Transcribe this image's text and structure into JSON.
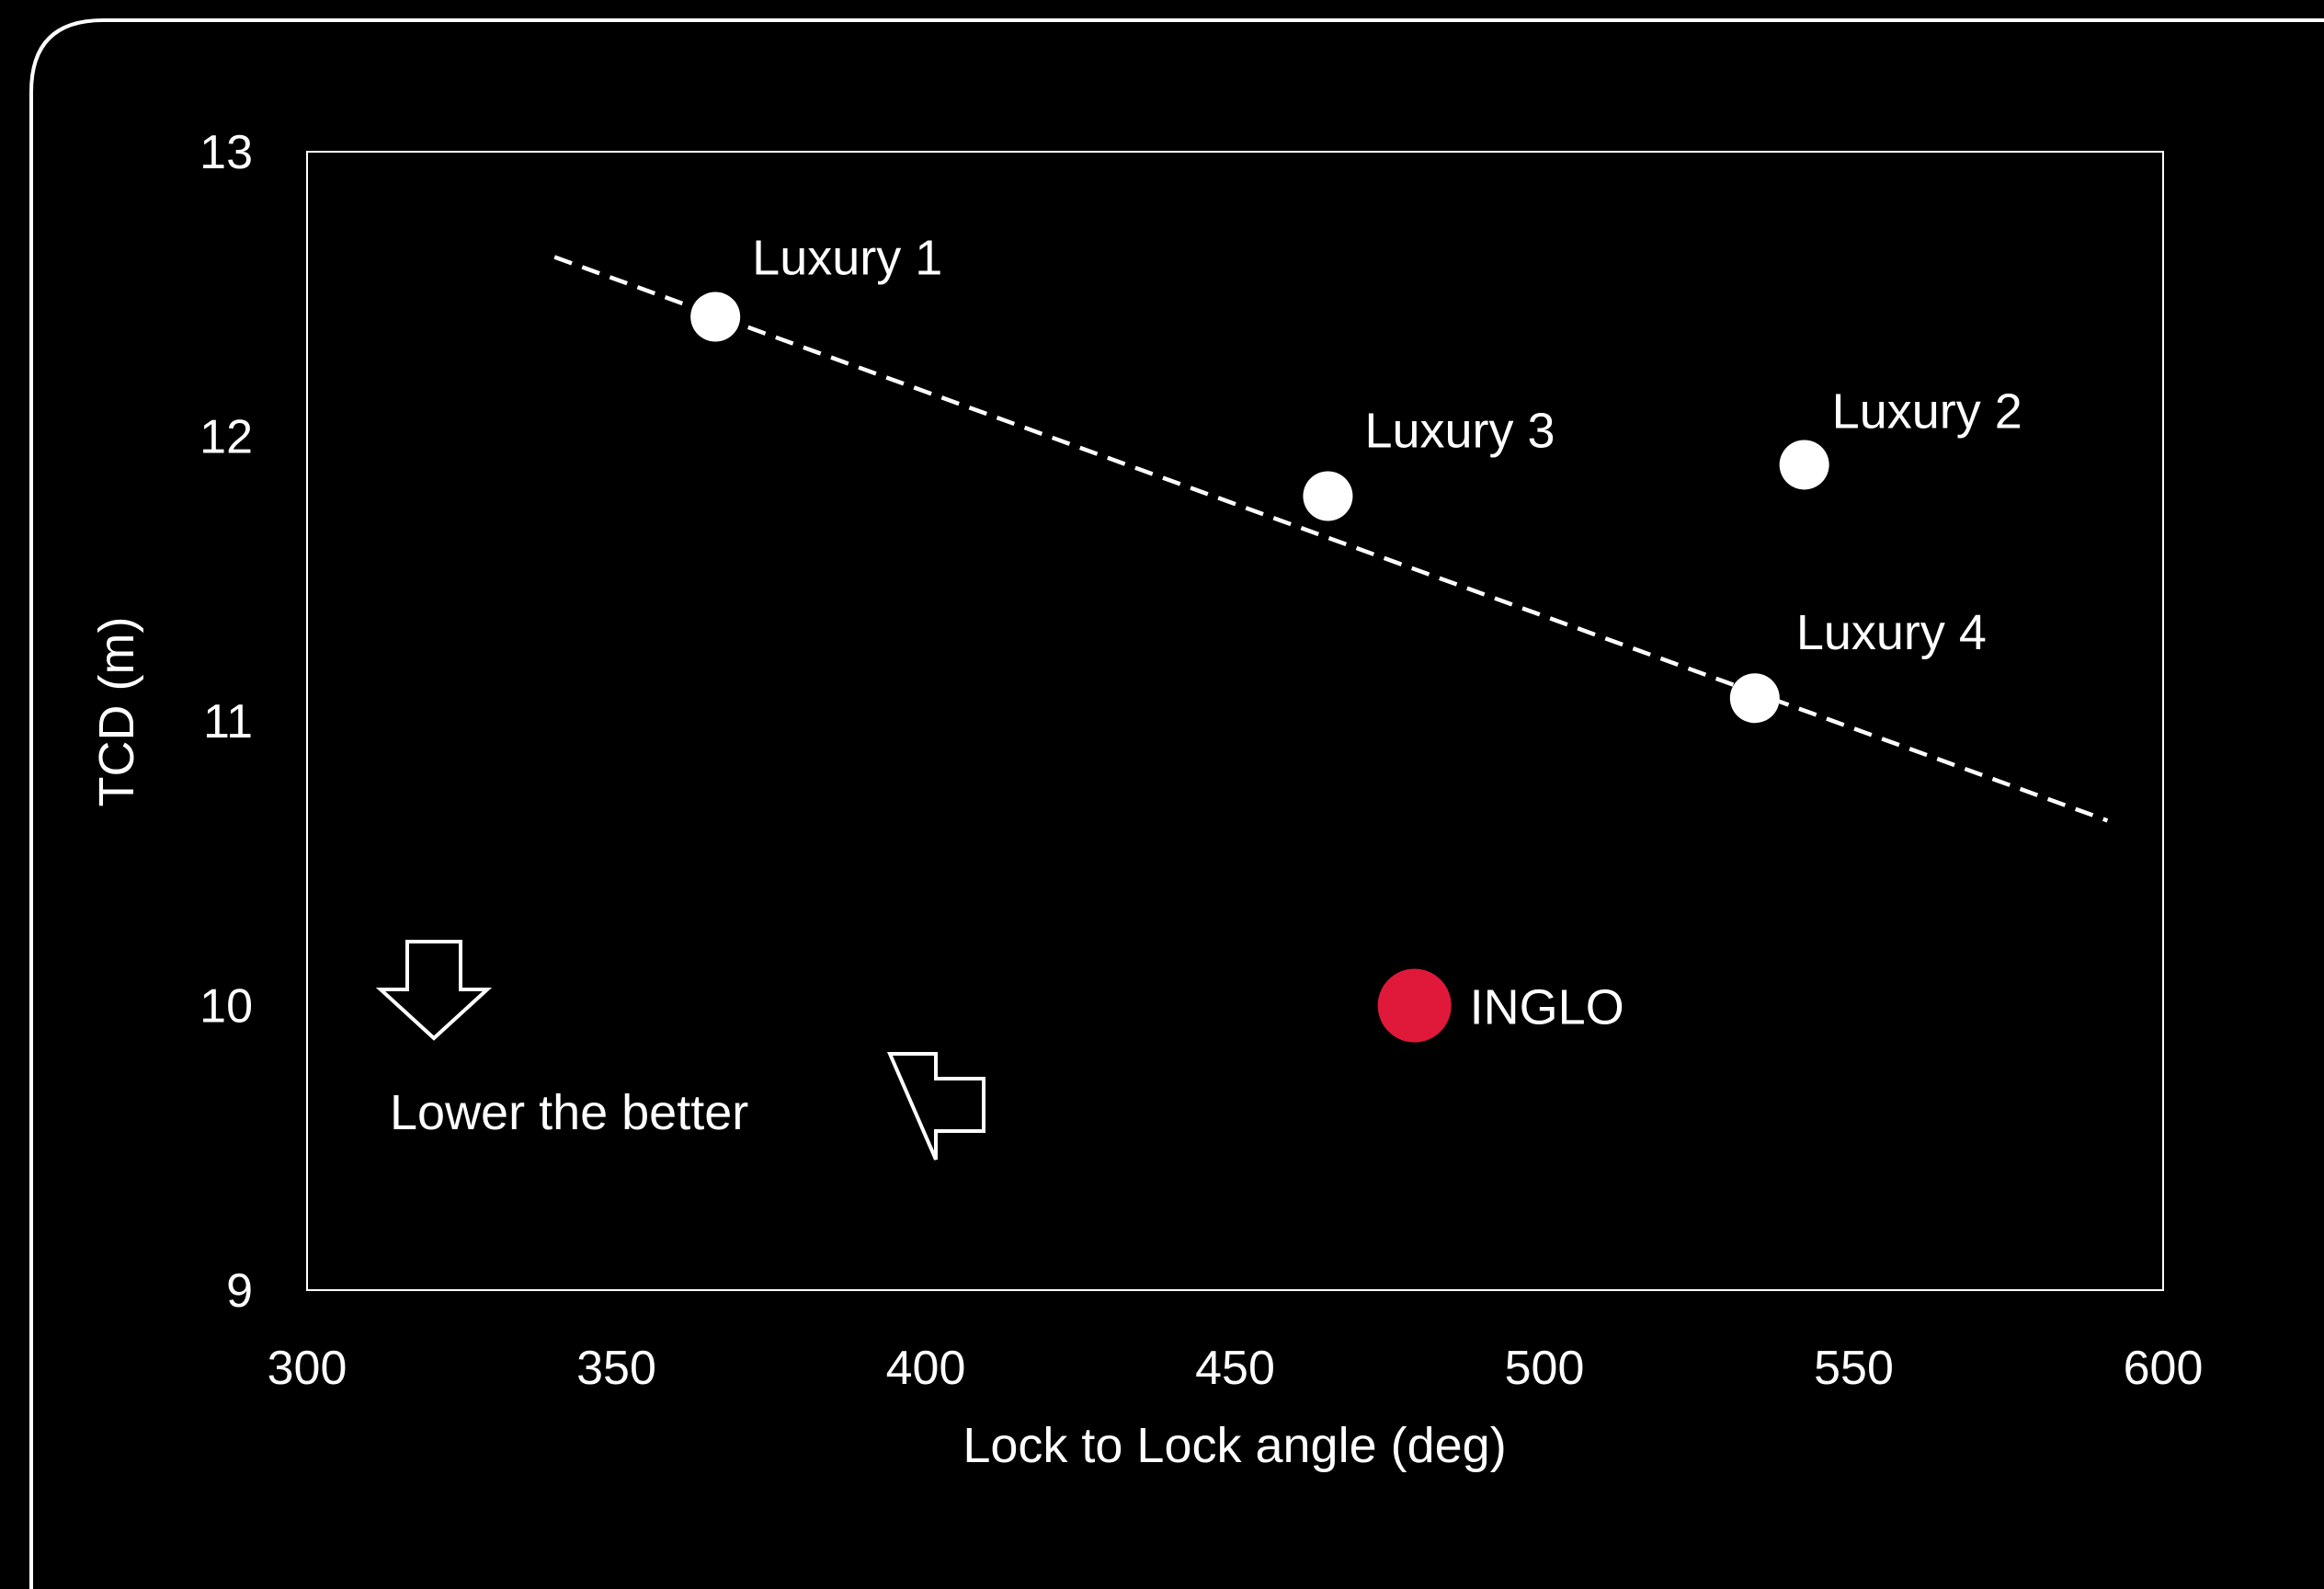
{
  "colors": {
    "background": "#000000",
    "foreground": "#ffffff",
    "highlight": "#e0193a"
  },
  "chart_data": {
    "type": "scatter",
    "title": "",
    "xlabel": "Lock to Lock angle (deg)",
    "ylabel": "TCD (m)",
    "xlim": [
      300,
      600
    ],
    "ylim": [
      9,
      13
    ],
    "x_ticks": [
      300,
      350,
      400,
      450,
      500,
      550,
      600
    ],
    "y_ticks": [
      9,
      10,
      11,
      12,
      13
    ],
    "grid": false,
    "legend": "none",
    "points": [
      {
        "label": "Luxury 1",
        "x": 366,
        "y": 12.42,
        "color": "#ffffff"
      },
      {
        "label": "Luxury 3",
        "x": 465,
        "y": 11.79,
        "color": "#ffffff"
      },
      {
        "label": "Luxury 2",
        "x": 542,
        "y": 11.9,
        "color": "#ffffff"
      },
      {
        "label": "Luxury 4",
        "x": 534,
        "y": 11.08,
        "color": "#ffffff"
      },
      {
        "label": "INGLO",
        "x": 479,
        "y": 10.0,
        "color": "#e0193a"
      }
    ],
    "trendline": {
      "style": "dashed",
      "from": {
        "x": 340,
        "y": 12.63
      },
      "to": {
        "x": 591,
        "y": 10.65
      }
    },
    "annotations": [
      {
        "text": "Lower the better",
        "arrows": [
          "down-arrow",
          "left-arrow"
        ]
      }
    ]
  }
}
